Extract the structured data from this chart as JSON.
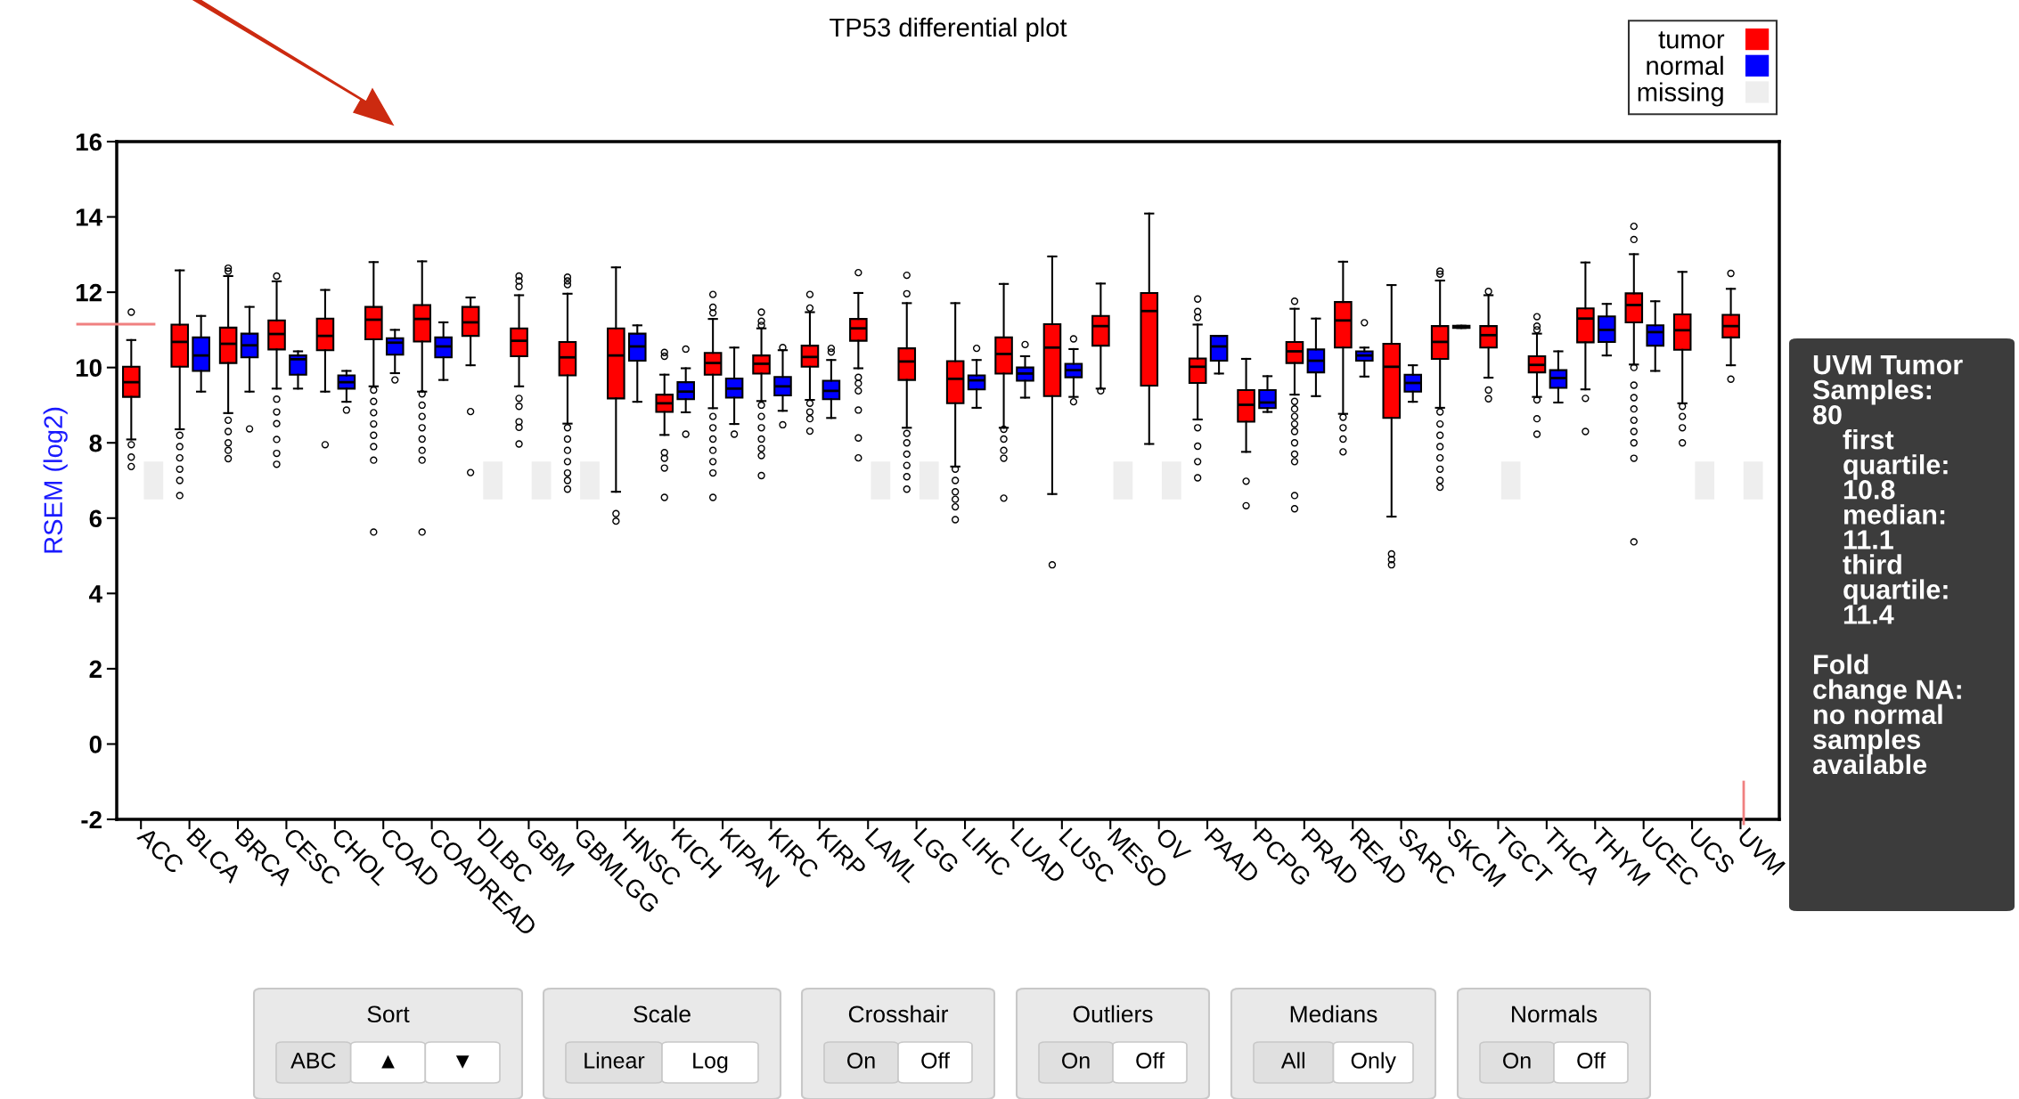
{
  "chart_data": {
    "type": "box",
    "title": "TP53 differential plot",
    "ylabel": "RSEM (log2)",
    "categories": [
      "ACC",
      "BLCA",
      "BRCA",
      "CESC",
      "CHOL",
      "COAD",
      "COADREAD",
      "DLBC",
      "GBM",
      "GBMLGG",
      "HNSC",
      "KICH",
      "KIPAN",
      "KIRC",
      "KIRP",
      "LAML",
      "LGG",
      "LIHC",
      "LUAD",
      "LUSC",
      "MESO",
      "OV",
      "PAAD",
      "PCPG",
      "PRAD",
      "READ",
      "SARC",
      "SKCM",
      "TGCT",
      "THCA",
      "THYM",
      "UCEC",
      "UCS",
      "UVM"
    ],
    "ylim": [
      -2,
      16
    ],
    "yticks": [
      -2,
      0,
      2,
      4,
      6,
      8,
      10,
      12,
      14,
      16
    ],
    "grid": false,
    "legend": "top right",
    "series": [
      {
        "name": "tumor",
        "color": "#ff0000",
        "boxes": [
          {
            "low": 8.09,
            "q1": 9.22,
            "median": 9.61,
            "q3": 10.02,
            "high": 10.73,
            "outliers": [
              11.47,
              7.95,
              7.62,
              7.37
            ]
          },
          {
            "low": 8.36,
            "q1": 10.02,
            "median": 10.68,
            "q3": 11.14,
            "high": 12.58,
            "outliers": [
              8.2,
              7.9,
              7.6,
              7.3,
              7.0,
              6.6
            ]
          },
          {
            "low": 8.79,
            "q1": 10.12,
            "median": 10.63,
            "q3": 11.06,
            "high": 12.43,
            "outliers": [
              12.64,
              12.56,
              8.6,
              8.3,
              8.0,
              7.8,
              7.58
            ]
          },
          {
            "low": 9.44,
            "q1": 10.48,
            "median": 10.89,
            "q3": 11.25,
            "high": 12.29,
            "outliers": [
              12.43,
              9.16,
              8.82,
              8.51,
              8.09,
              7.72,
              7.43
            ]
          },
          {
            "low": 9.36,
            "q1": 10.46,
            "median": 10.84,
            "q3": 11.3,
            "high": 12.06,
            "outliers": [
              7.95
            ]
          },
          {
            "low": 9.5,
            "q1": 10.75,
            "median": 11.27,
            "q3": 11.61,
            "high": 12.8,
            "outliers": [
              9.4,
              9.1,
              8.8,
              8.5,
              8.2,
              7.9,
              7.54,
              5.63
            ]
          },
          {
            "low": 9.36,
            "q1": 10.69,
            "median": 11.29,
            "q3": 11.66,
            "high": 12.82,
            "outliers": [
              9.3,
              9.0,
              8.7,
              8.4,
              8.1,
              7.8,
              7.54,
              5.63
            ]
          },
          {
            "low": 10.06,
            "q1": 10.84,
            "median": 11.2,
            "q3": 11.61,
            "high": 11.86,
            "outliers": [
              8.83,
              7.21
            ]
          },
          {
            "low": 9.5,
            "q1": 10.3,
            "median": 10.71,
            "q3": 11.04,
            "high": 11.92,
            "outliers": [
              12.43,
              12.3,
              12.15,
              9.18,
              8.97,
              8.56,
              8.41,
              7.97
            ]
          },
          {
            "low": 8.51,
            "q1": 9.79,
            "median": 10.27,
            "q3": 10.68,
            "high": 11.96,
            "outliers": [
              12.4,
              12.3,
              12.2,
              8.4,
              8.1,
              7.8,
              7.5,
              7.2,
              7.0,
              6.77
            ]
          },
          {
            "low": 6.7,
            "q1": 9.18,
            "median": 10.32,
            "q3": 11.04,
            "high": 12.66,
            "outliers": [
              6.12,
              5.92
            ]
          },
          {
            "low": 8.21,
            "q1": 8.82,
            "median": 9.05,
            "q3": 9.28,
            "high": 9.81,
            "outliers": [
              10.4,
              10.3,
              7.74,
              7.59,
              7.33,
              6.55
            ]
          },
          {
            "low": 8.92,
            "q1": 9.81,
            "median": 10.12,
            "q3": 10.39,
            "high": 11.29,
            "outliers": [
              11.94,
              11.6,
              11.45,
              8.7,
              8.4,
              8.1,
              7.8,
              7.5,
              7.2,
              6.55
            ]
          },
          {
            "low": 9.11,
            "q1": 9.84,
            "median": 10.1,
            "q3": 10.32,
            "high": 11.04,
            "outliers": [
              11.47,
              11.23,
              11.12,
              9.0,
              8.7,
              8.4,
              8.1,
              7.85,
              7.66,
              7.13
            ]
          },
          {
            "low": 9.14,
            "q1": 10.02,
            "median": 10.28,
            "q3": 10.58,
            "high": 11.47,
            "outliers": [
              11.94,
              11.58,
              9.05,
              8.82,
              8.64,
              8.31
            ]
          },
          {
            "low": 9.98,
            "q1": 10.71,
            "median": 11.04,
            "q3": 11.29,
            "high": 11.98,
            "outliers": [
              12.52,
              9.74,
              9.58,
              9.38,
              8.87,
              8.13,
              7.6
            ]
          },
          {
            "low": 8.4,
            "q1": 9.67,
            "median": 10.16,
            "q3": 10.51,
            "high": 11.71,
            "outliers": [
              12.45,
              11.96,
              8.25,
              8.0,
              7.7,
              7.4,
              7.1,
              6.77
            ]
          },
          {
            "low": 7.37,
            "q1": 9.05,
            "median": 9.7,
            "q3": 10.17,
            "high": 11.71,
            "outliers": [
              7.3,
              7.0,
              6.7,
              6.5,
              6.3,
              5.96
            ]
          },
          {
            "low": 8.4,
            "q1": 9.84,
            "median": 10.36,
            "q3": 10.8,
            "high": 12.22,
            "outliers": [
              8.36,
              8.1,
              7.8,
              7.59,
              6.53
            ]
          },
          {
            "low": 6.64,
            "q1": 9.24,
            "median": 10.53,
            "q3": 11.15,
            "high": 12.95,
            "outliers": [
              4.76
            ]
          },
          {
            "low": 9.44,
            "q1": 10.58,
            "median": 11.1,
            "q3": 11.37,
            "high": 12.23,
            "outliers": [
              9.38
            ]
          },
          {
            "low": 7.97,
            "q1": 9.52,
            "median": 11.5,
            "q3": 11.98,
            "high": 14.09
          },
          {
            "low": 8.62,
            "q1": 9.59,
            "median": 10.02,
            "q3": 10.24,
            "high": 11.14,
            "outliers": [
              11.82,
              11.49,
              11.33,
              8.4,
              7.91,
              7.5,
              7.07
            ]
          },
          {
            "low": 7.76,
            "q1": 8.56,
            "median": 9.01,
            "q3": 9.4,
            "high": 10.23,
            "outliers": [
              6.98,
              6.33
            ]
          },
          {
            "low": 9.28,
            "q1": 10.12,
            "median": 10.43,
            "q3": 10.68,
            "high": 11.56,
            "outliers": [
              11.76,
              9.1,
              8.9,
              8.7,
              8.5,
              8.3,
              8.0,
              7.7,
              7.5,
              6.6,
              6.25
            ]
          },
          {
            "low": 8.77,
            "q1": 10.53,
            "median": 11.25,
            "q3": 11.74,
            "high": 12.81,
            "outliers": [
              8.68,
              8.4,
              8.1,
              7.76
            ]
          },
          {
            "low": 6.04,
            "q1": 8.66,
            "median": 10.02,
            "q3": 10.63,
            "high": 12.19,
            "outliers": [
              5.05,
              4.9,
              4.76
            ]
          },
          {
            "low": 8.93,
            "q1": 10.23,
            "median": 10.68,
            "q3": 11.1,
            "high": 12.31,
            "outliers": [
              12.56,
              12.48,
              8.82,
              8.5,
              8.2,
              7.9,
              7.6,
              7.3,
              7.0,
              6.82
            ]
          },
          {
            "low": 9.73,
            "q1": 10.53,
            "median": 10.86,
            "q3": 11.1,
            "high": 11.92,
            "outliers": [
              12.02,
              9.4,
              9.17
            ]
          },
          {
            "low": 9.22,
            "q1": 9.87,
            "median": 10.07,
            "q3": 10.3,
            "high": 10.9,
            "outliers": [
              11.35,
              11.1,
              11.0,
              9.14,
              8.64,
              8.23
            ]
          },
          {
            "low": 9.42,
            "q1": 10.67,
            "median": 11.3,
            "q3": 11.57,
            "high": 12.79,
            "outliers": [
              9.18,
              8.3
            ]
          },
          {
            "low": 10.08,
            "q1": 11.2,
            "median": 11.66,
            "q3": 11.97,
            "high": 13.01,
            "outliers": [
              13.75,
              13.4,
              10.0,
              9.53,
              9.2,
              8.9,
              8.6,
              8.3,
              8.0,
              7.59,
              5.37
            ]
          },
          {
            "low": 9.05,
            "q1": 10.47,
            "median": 10.99,
            "q3": 11.41,
            "high": 12.54,
            "outliers": [
              8.97,
              8.7,
              8.4,
              8.0
            ]
          },
          {
            "low": 10.06,
            "q1": 10.8,
            "median": 11.1,
            "q3": 11.4,
            "high": 12.09,
            "outliers": [
              12.5,
              9.69
            ]
          }
        ]
      },
      {
        "name": "normal",
        "color": "#0000ff",
        "boxes": [
          null,
          {
            "low": 9.36,
            "q1": 9.91,
            "median": 10.32,
            "q3": 10.8,
            "high": 11.37
          },
          {
            "low": 9.36,
            "q1": 10.27,
            "median": 10.59,
            "q3": 10.9,
            "high": 11.61,
            "outliers": [
              8.37
            ]
          },
          {
            "low": 9.44,
            "q1": 9.81,
            "median": 10.22,
            "q3": 10.32,
            "high": 10.43
          },
          {
            "low": 9.09,
            "q1": 9.44,
            "median": 9.61,
            "q3": 9.79,
            "high": 9.91,
            "outliers": [
              8.87
            ]
          },
          {
            "low": 9.85,
            "q1": 10.34,
            "median": 10.66,
            "q3": 10.78,
            "high": 11.0,
            "outliers": [
              9.67
            ]
          },
          {
            "low": 9.67,
            "q1": 10.27,
            "median": 10.56,
            "q3": 10.8,
            "high": 11.2
          },
          null,
          null,
          null,
          {
            "low": 9.09,
            "q1": 10.18,
            "median": 10.56,
            "q3": 10.9,
            "high": 11.12
          },
          {
            "low": 8.81,
            "q1": 9.16,
            "median": 9.36,
            "q3": 9.61,
            "high": 9.98,
            "outliers": [
              10.49,
              8.23
            ]
          },
          {
            "low": 8.5,
            "q1": 9.2,
            "median": 9.44,
            "q3": 9.71,
            "high": 10.53,
            "outliers": [
              8.23
            ]
          },
          {
            "low": 8.85,
            "q1": 9.26,
            "median": 9.5,
            "q3": 9.75,
            "high": 10.46,
            "outliers": [
              10.53,
              8.48
            ]
          },
          {
            "low": 8.66,
            "q1": 9.16,
            "median": 9.38,
            "q3": 9.65,
            "high": 10.2,
            "outliers": [
              10.51,
              10.41
            ]
          },
          null,
          null,
          {
            "low": 8.93,
            "q1": 9.42,
            "median": 9.66,
            "q3": 9.79,
            "high": 10.2,
            "outliers": [
              10.51
            ]
          },
          {
            "low": 9.2,
            "q1": 9.65,
            "median": 9.84,
            "q3": 10.0,
            "high": 10.3,
            "outliers": [
              10.61
            ]
          },
          {
            "low": 9.22,
            "q1": 9.74,
            "median": 9.93,
            "q3": 10.1,
            "high": 10.49,
            "outliers": [
              10.76,
              9.09
            ]
          },
          null,
          null,
          {
            "low": 9.84,
            "q1": 10.18,
            "median": 10.56,
            "q3": 10.84,
            "high": 10.84
          },
          {
            "low": 8.82,
            "q1": 8.92,
            "median": 9.07,
            "q3": 9.4,
            "high": 9.77
          },
          {
            "low": 9.24,
            "q1": 9.87,
            "median": 10.18,
            "q3": 10.48,
            "high": 11.3
          },
          {
            "low": 9.76,
            "q1": 10.18,
            "median": 10.32,
            "q3": 10.43,
            "high": 10.53,
            "outliers": [
              11.19
            ]
          },
          {
            "low": 9.09,
            "q1": 9.36,
            "median": 9.59,
            "q3": 9.81,
            "high": 10.06
          },
          {
            "low": 11.05,
            "q1": 11.05,
            "median": 11.08,
            "q3": 11.11,
            "high": 11.11
          },
          null,
          {
            "low": 9.07,
            "q1": 9.46,
            "median": 9.72,
            "q3": 9.93,
            "high": 10.43
          },
          {
            "low": 10.32,
            "q1": 10.68,
            "median": 11.0,
            "q3": 11.36,
            "high": 11.69
          },
          {
            "low": 9.91,
            "q1": 10.58,
            "median": 10.94,
            "q3": 11.12,
            "high": 11.76
          },
          null,
          null
        ]
      },
      {
        "name": "missing",
        "type": "bar",
        "color": "#eeeeee",
        "values": [
          1.0,
          null,
          null,
          null,
          null,
          null,
          null,
          1.0,
          1.0,
          1.0,
          null,
          null,
          null,
          null,
          null,
          1.0,
          1.0,
          null,
          null,
          null,
          1.0,
          1.0,
          null,
          null,
          null,
          null,
          null,
          null,
          1.0,
          null,
          null,
          null,
          1.0,
          1.0
        ],
        "base": [
          6.5,
          null,
          null,
          null,
          null,
          null,
          null,
          6.5,
          6.5,
          6.5,
          null,
          null,
          null,
          null,
          null,
          6.5,
          6.5,
          null,
          null,
          null,
          6.5,
          6.5,
          null,
          null,
          null,
          null,
          null,
          null,
          6.5,
          null,
          null,
          null,
          6.5,
          6.5
        ]
      }
    ],
    "annotations": [
      "UVM Tumor\nSamples:\n80\n    first\n    quartile:\n    10.8\n    median:\n    11.1\n    third\n    quartile:\n    11.4\n\nFold\nchange NA:\nno normal\nsamples\navailable",
      "Sort",
      "ABC",
      "▲",
      "▼",
      "Scale",
      "Linear",
      "Log",
      "Crosshair",
      "On",
      "Off",
      "Outliers",
      "On",
      "Off",
      "Medians",
      "All",
      "Only",
      "Normals",
      "On",
      "Off"
    ]
  }
}
